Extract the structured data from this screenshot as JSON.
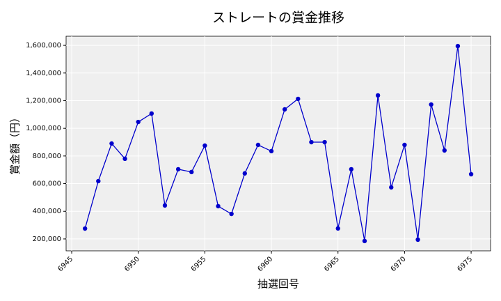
{
  "chart_data": {
    "type": "line",
    "title": "ストレートの賞金推移",
    "x_label": "抽選回号",
    "y_label": "賞金額（円）",
    "x": [
      6946,
      6947,
      6948,
      6949,
      6950,
      6951,
      6952,
      6953,
      6954,
      6955,
      6956,
      6957,
      6958,
      6959,
      6960,
      6961,
      6962,
      6963,
      6964,
      6965,
      6966,
      6967,
      6968,
      6969,
      6970,
      6971,
      6972,
      6973,
      6974,
      6975
    ],
    "series": [
      {
        "name": "賞金",
        "color": "#0000cc",
        "values": [
          275000,
          618000,
          890000,
          780000,
          1046000,
          1107000,
          442000,
          704000,
          684000,
          875000,
          437000,
          381000,
          674000,
          880000,
          835000,
          1137000,
          1213000,
          900000,
          900000,
          276000,
          704000,
          185000,
          1238000,
          573000,
          880000,
          195000,
          1172000,
          840000,
          1595000,
          668000
        ]
      }
    ],
    "xlim": [
      6944.58,
      6976.46
    ],
    "ylim": [
      114000,
      1666000
    ],
    "xticks": [
      6945,
      6950,
      6955,
      6960,
      6965,
      6970,
      6975
    ],
    "yticks": [
      {
        "value": 200000,
        "label": "200,000"
      },
      {
        "value": 400000,
        "label": "400,000"
      },
      {
        "value": 600000,
        "label": "600,000"
      },
      {
        "value": 800000,
        "label": "800,000"
      },
      {
        "value": 1000000,
        "label": "1,000,000"
      },
      {
        "value": 1200000,
        "label": "1,200,000"
      },
      {
        "value": 1400000,
        "label": "1,400,000"
      },
      {
        "value": 1600000,
        "label": "1,600,000"
      }
    ],
    "grid": true
  }
}
